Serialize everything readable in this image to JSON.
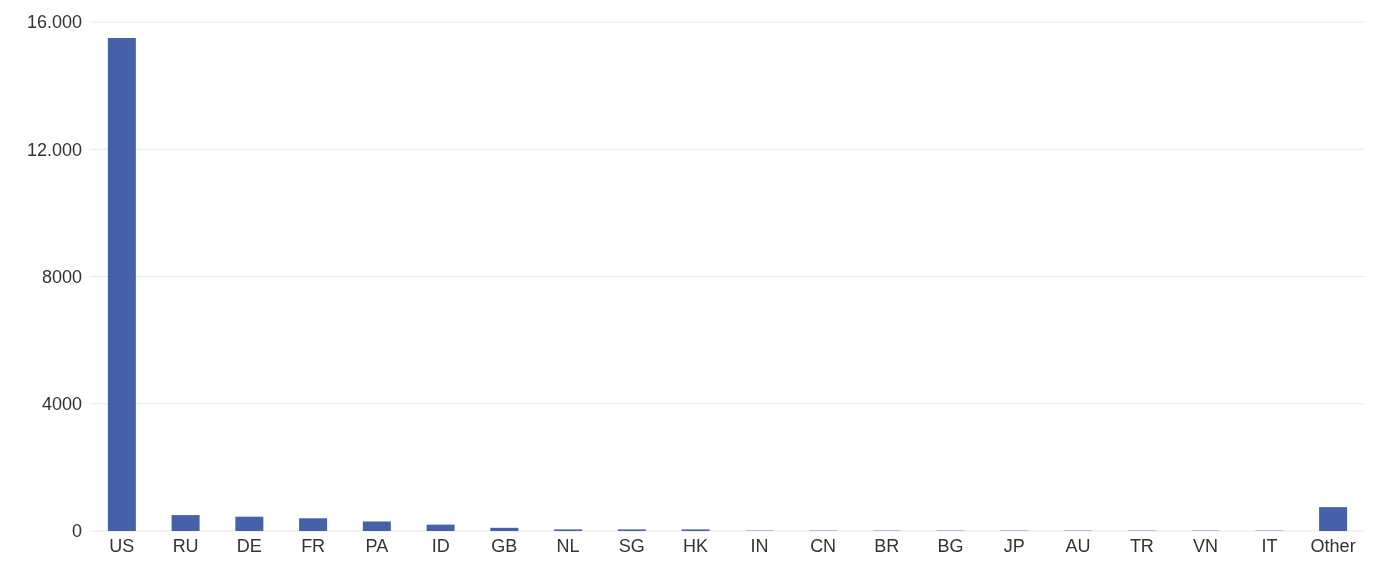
{
  "chart_data": {
    "type": "bar",
    "categories": [
      "US",
      "RU",
      "DE",
      "FR",
      "PA",
      "ID",
      "GB",
      "NL",
      "SG",
      "HK",
      "IN",
      "CN",
      "BR",
      "BG",
      "JP",
      "AU",
      "TR",
      "VN",
      "IT",
      "Other"
    ],
    "values": [
      15500,
      500,
      450,
      400,
      300,
      200,
      100,
      50,
      50,
      50,
      20,
      20,
      20,
      20,
      20,
      20,
      20,
      20,
      20,
      750
    ],
    "colors": [
      "#4561aa",
      "#4561aa",
      "#4561aa",
      "#4561aa",
      "#4561aa",
      "#4561aa",
      "#4561aa",
      "#4561aa",
      "#4561aa",
      "#4561aa",
      "#93a3d2",
      "#93a3d2",
      "#93a3d2",
      "#93a3d2",
      "#93a3d2",
      "#93a3d2",
      "#93a3d2",
      "#93a3d2",
      "#93a3d2",
      "#4561aa"
    ],
    "ylim": [
      0,
      16000
    ],
    "yticks": [
      0,
      4000,
      8000,
      {
        "value": 12000,
        "label": "12.000"
      },
      {
        "value": 16000,
        "label": "16.000"
      }
    ],
    "grid": "y"
  }
}
